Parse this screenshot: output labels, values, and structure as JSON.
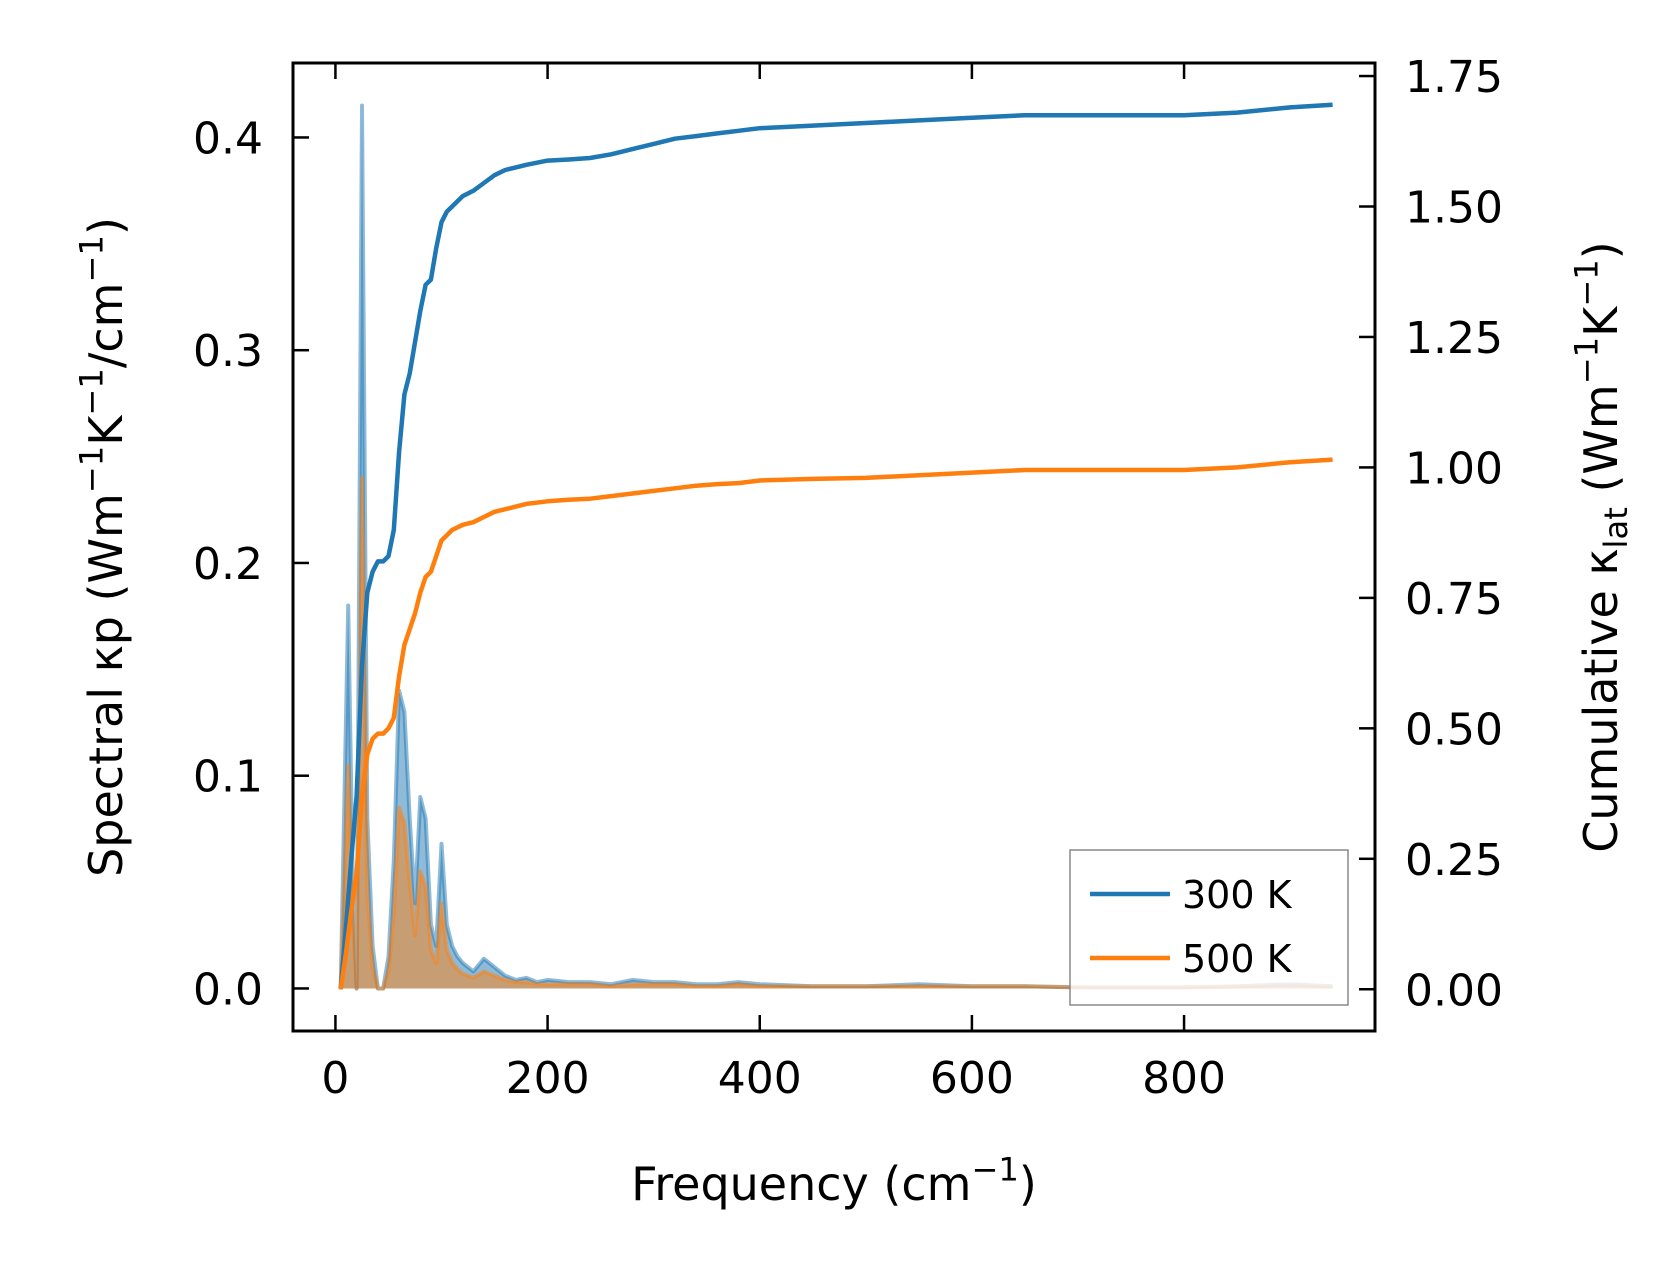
{
  "chart_data": {
    "type": "line",
    "title": "",
    "xlabel": "Frequency (cm$^{-1}$)",
    "ylabel_left": "Spectral κ$_p$ (Wm$^{-1}$K$^{-1}$/cm$^{-1}$)",
    "ylabel_right": "Cumulative κ$_{lat}$ (Wm$^{-1}$K$^{-1}$)",
    "xlim": [
      -40,
      980
    ],
    "ylim_left": [
      -0.02,
      0.435
    ],
    "ylim_right": [
      -0.08,
      1.775
    ],
    "x_ticks": [
      0,
      200,
      400,
      600,
      800
    ],
    "y_ticks_left": [
      0.0,
      0.1,
      0.2,
      0.3,
      0.4
    ],
    "y_tick_labels_left": [
      "0.0",
      "0.1",
      "0.2",
      "0.3",
      "0.4"
    ],
    "y_ticks_right": [
      0.0,
      0.25,
      0.5,
      0.75,
      1.0,
      1.25,
      1.5,
      1.75
    ],
    "y_tick_labels_right": [
      "0.00",
      "0.25",
      "0.50",
      "0.75",
      "1.00",
      "1.25",
      "1.50",
      "1.75"
    ],
    "legend_position": "lower-right",
    "grid": false,
    "series": [
      {
        "name": "300 K",
        "color": "#1f77b4",
        "spectral": {
          "x": [
            5,
            12,
            16,
            20,
            25,
            30,
            35,
            40,
            45,
            50,
            55,
            60,
            65,
            70,
            75,
            80,
            85,
            90,
            95,
            100,
            105,
            110,
            115,
            120,
            130,
            140,
            150,
            160,
            170,
            180,
            190,
            200,
            220,
            240,
            260,
            280,
            300,
            320,
            340,
            360,
            380,
            400,
            450,
            500,
            550,
            600,
            650,
            700,
            750,
            800,
            850,
            900,
            940
          ],
          "y": [
            0.0,
            0.18,
            0.06,
            0.0,
            0.415,
            0.08,
            0.02,
            0.0,
            0.0,
            0.015,
            0.06,
            0.14,
            0.13,
            0.08,
            0.04,
            0.09,
            0.08,
            0.03,
            0.02,
            0.068,
            0.03,
            0.02,
            0.015,
            0.012,
            0.008,
            0.014,
            0.01,
            0.006,
            0.004,
            0.005,
            0.003,
            0.004,
            0.003,
            0.003,
            0.002,
            0.004,
            0.003,
            0.003,
            0.002,
            0.002,
            0.003,
            0.002,
            0.001,
            0.001,
            0.002,
            0.001,
            0.001,
            0.0005,
            0.0005,
            0.0005,
            0.001,
            0.002,
            0.001
          ]
        },
        "cumulative": {
          "x": [
            5,
            10,
            15,
            20,
            25,
            30,
            35,
            40,
            45,
            50,
            55,
            60,
            65,
            70,
            75,
            80,
            85,
            90,
            95,
            100,
            105,
            110,
            120,
            130,
            140,
            150,
            160,
            170,
            180,
            200,
            220,
            240,
            260,
            280,
            300,
            320,
            340,
            360,
            380,
            400,
            450,
            500,
            550,
            600,
            650,
            700,
            750,
            800,
            850,
            900,
            940
          ],
          "y": [
            0.0,
            0.12,
            0.25,
            0.37,
            0.62,
            0.76,
            0.8,
            0.82,
            0.82,
            0.83,
            0.88,
            1.03,
            1.14,
            1.18,
            1.24,
            1.3,
            1.35,
            1.36,
            1.42,
            1.47,
            1.49,
            1.5,
            1.52,
            1.53,
            1.545,
            1.56,
            1.57,
            1.575,
            1.58,
            1.588,
            1.59,
            1.593,
            1.6,
            1.61,
            1.62,
            1.63,
            1.635,
            1.64,
            1.645,
            1.65,
            1.655,
            1.66,
            1.665,
            1.67,
            1.675,
            1.675,
            1.675,
            1.675,
            1.68,
            1.69,
            1.695
          ]
        }
      },
      {
        "name": "500 K",
        "color": "#ff7f0e",
        "spectral": {
          "x": [
            5,
            12,
            16,
            20,
            25,
            30,
            35,
            40,
            45,
            50,
            55,
            60,
            65,
            70,
            75,
            80,
            85,
            90,
            95,
            100,
            105,
            110,
            115,
            120,
            130,
            140,
            150,
            160,
            170,
            180,
            190,
            200,
            220,
            240,
            260,
            280,
            300,
            320,
            340,
            360,
            380,
            400,
            450,
            500,
            550,
            600,
            650,
            700,
            750,
            800,
            850,
            900,
            940
          ],
          "y": [
            0.0,
            0.105,
            0.035,
            0.0,
            0.24,
            0.045,
            0.01,
            0.0,
            0.0,
            0.008,
            0.035,
            0.085,
            0.078,
            0.05,
            0.025,
            0.055,
            0.048,
            0.018,
            0.012,
            0.04,
            0.018,
            0.012,
            0.009,
            0.007,
            0.005,
            0.008,
            0.006,
            0.004,
            0.003,
            0.003,
            0.002,
            0.002,
            0.002,
            0.002,
            0.001,
            0.002,
            0.002,
            0.002,
            0.001,
            0.001,
            0.002,
            0.001,
            0.001,
            0.001,
            0.001,
            0.001,
            0.001,
            0.0005,
            0.0005,
            0.0005,
            0.0008,
            0.001,
            0.0008
          ]
        },
        "cumulative": {
          "x": [
            5,
            10,
            15,
            20,
            25,
            30,
            35,
            40,
            45,
            50,
            55,
            60,
            65,
            70,
            75,
            80,
            85,
            90,
            95,
            100,
            105,
            110,
            120,
            130,
            140,
            150,
            160,
            170,
            180,
            200,
            220,
            240,
            260,
            280,
            300,
            320,
            340,
            360,
            380,
            400,
            450,
            500,
            550,
            600,
            650,
            700,
            750,
            800,
            850,
            900,
            940
          ],
          "y": [
            0.0,
            0.07,
            0.15,
            0.22,
            0.37,
            0.45,
            0.48,
            0.49,
            0.49,
            0.5,
            0.52,
            0.6,
            0.66,
            0.69,
            0.72,
            0.76,
            0.79,
            0.8,
            0.83,
            0.86,
            0.87,
            0.88,
            0.89,
            0.895,
            0.905,
            0.915,
            0.92,
            0.925,
            0.93,
            0.935,
            0.938,
            0.94,
            0.945,
            0.95,
            0.955,
            0.96,
            0.965,
            0.968,
            0.97,
            0.975,
            0.978,
            0.98,
            0.985,
            0.99,
            0.995,
            0.995,
            0.995,
            0.995,
            1.0,
            1.01,
            1.015
          ]
        }
      }
    ]
  }
}
